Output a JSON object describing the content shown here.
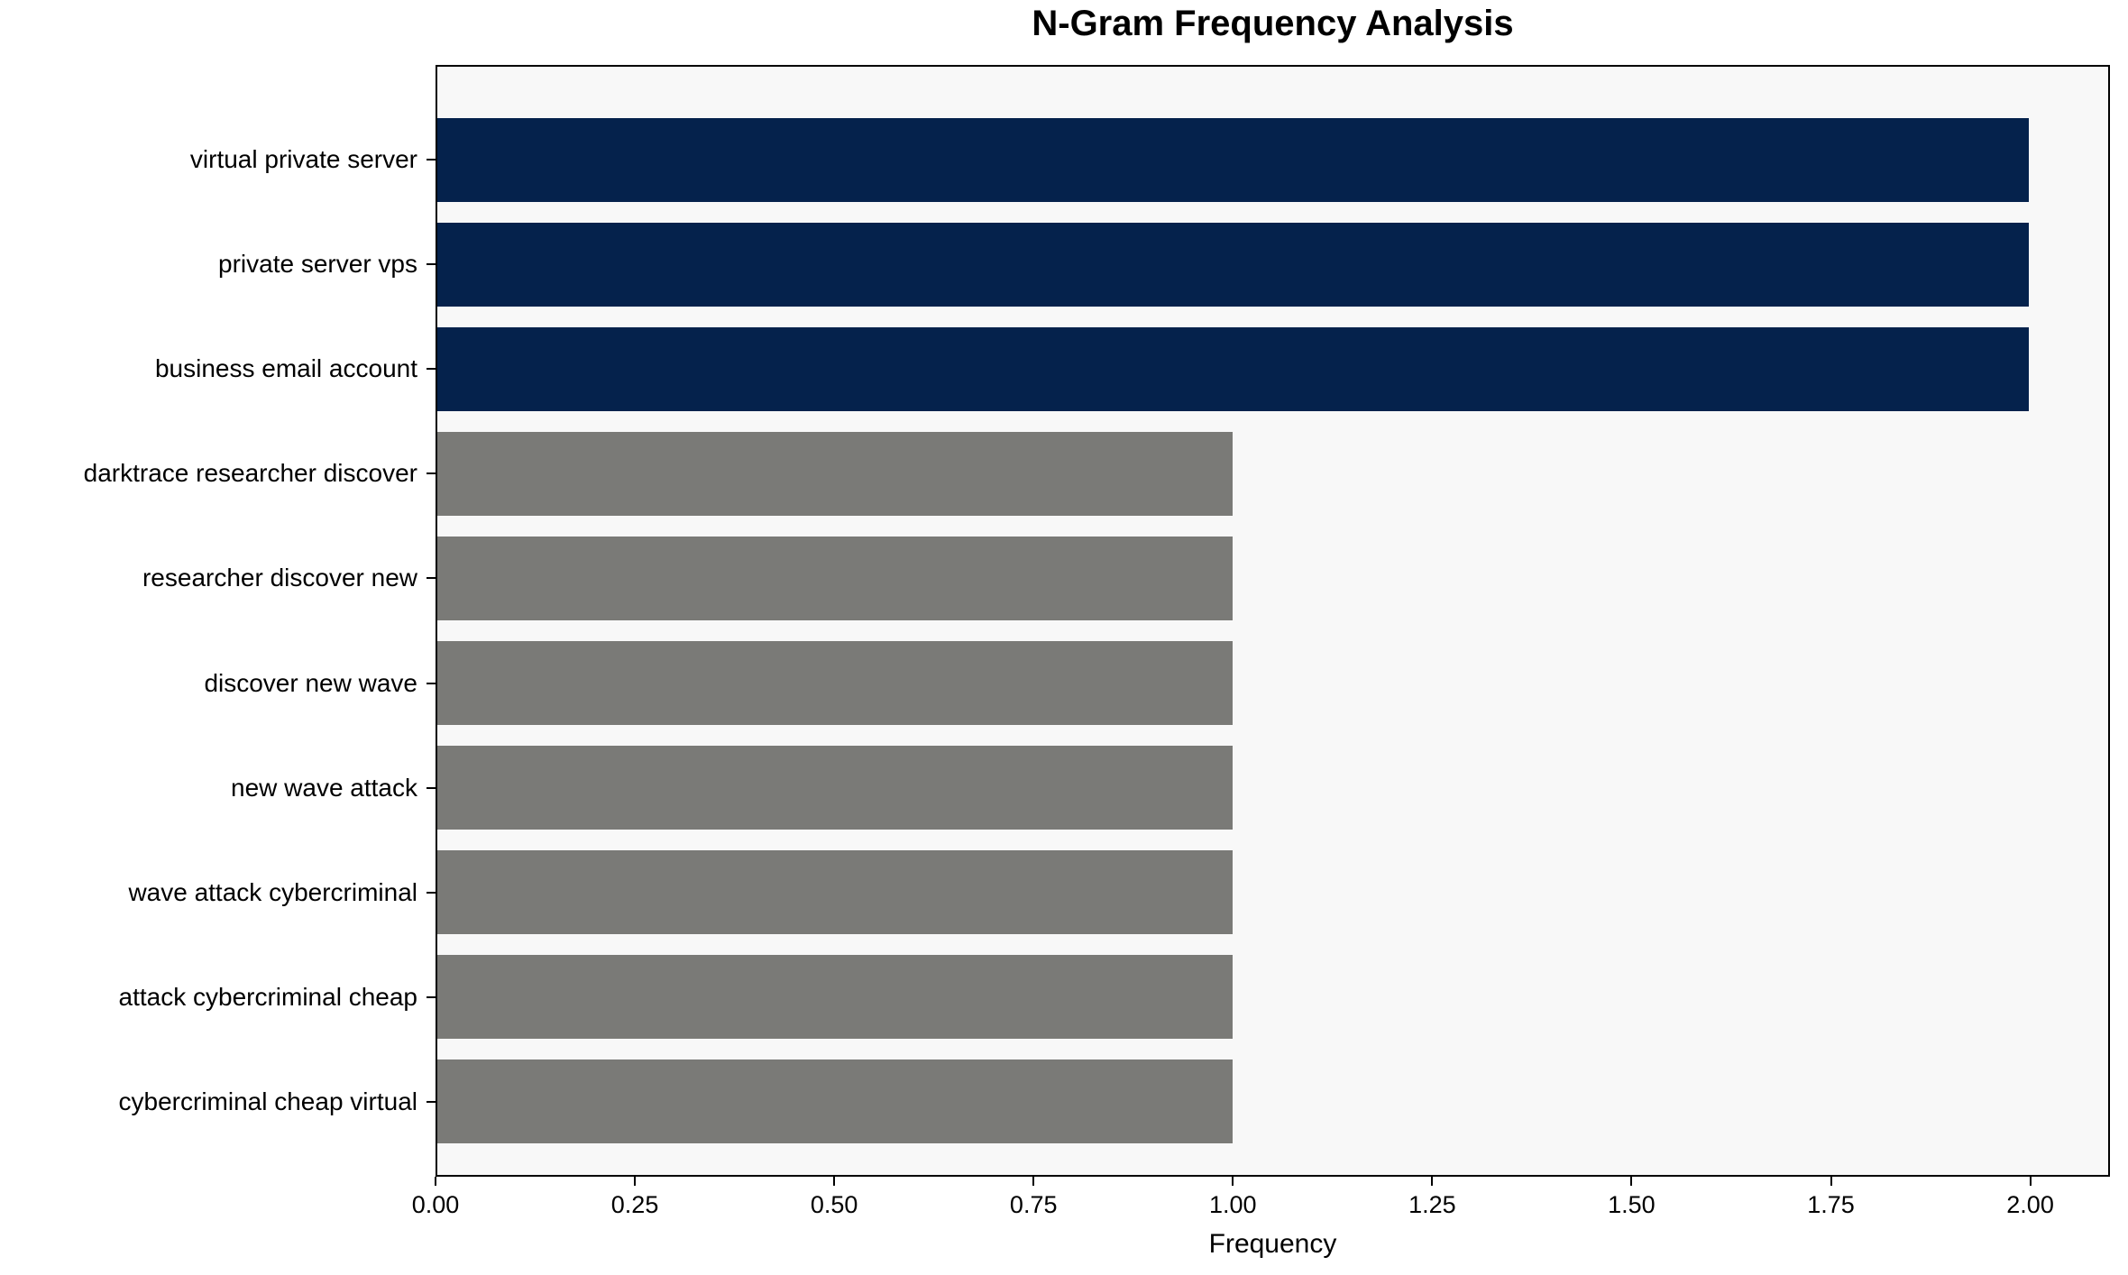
{
  "chart_data": {
    "type": "bar",
    "orientation": "horizontal",
    "title": "N-Gram Frequency Analysis",
    "xlabel": "Frequency",
    "ylabel": "",
    "categories": [
      "virtual private server",
      "private server vps",
      "business email account",
      "darktrace researcher discover",
      "researcher discover new",
      "discover new wave",
      "new wave attack",
      "wave attack cybercriminal",
      "attack cybercriminal cheap",
      "cybercriminal cheap virtual"
    ],
    "values": [
      2,
      2,
      2,
      1,
      1,
      1,
      1,
      1,
      1,
      1
    ],
    "bar_colors": [
      "#05224c",
      "#05224c",
      "#05224c",
      "#7a7a77",
      "#7a7a77",
      "#7a7a77",
      "#7a7a77",
      "#7a7a77",
      "#7a7a77",
      "#7a7a77"
    ],
    "xlim": [
      0,
      2.1
    ],
    "x_ticks": [
      "0.00",
      "0.25",
      "0.50",
      "0.75",
      "1.00",
      "1.25",
      "1.50",
      "1.75",
      "2.00"
    ],
    "x_tick_values": [
      0,
      0.25,
      0.5,
      0.75,
      1.0,
      1.25,
      1.5,
      1.75,
      2.0
    ],
    "grid": false,
    "legend": null,
    "colors": {
      "highlight_bar": "#05224c",
      "default_bar": "#7a7a77",
      "plot_background": "#f8f8f8",
      "figure_background": "#ffffff",
      "axis": "#000000",
      "text": "#000000"
    }
  }
}
